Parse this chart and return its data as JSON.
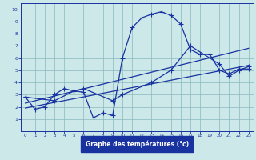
{
  "xlabel": "Graphe des températures (°c)",
  "xlim": [
    -0.5,
    23.5
  ],
  "ylim": [
    0,
    10.5
  ],
  "xticks": [
    0,
    1,
    2,
    3,
    4,
    5,
    6,
    7,
    8,
    9,
    10,
    11,
    12,
    13,
    14,
    15,
    16,
    17,
    18,
    19,
    20,
    21,
    22,
    23
  ],
  "yticks": [
    1,
    2,
    3,
    4,
    5,
    6,
    7,
    8,
    9,
    10
  ],
  "bg_color": "#cce8e8",
  "grid_color": "#88b8bc",
  "line_color": "#1832a0",
  "curve1_x": [
    0,
    1,
    2,
    3,
    4,
    5,
    6,
    7,
    8,
    9,
    10,
    11,
    12,
    13,
    14,
    15,
    16,
    17,
    18,
    19,
    20,
    21,
    22,
    23
  ],
  "curve1_y": [
    2.8,
    1.8,
    2.0,
    3.0,
    3.5,
    3.3,
    3.2,
    1.1,
    1.5,
    1.3,
    6.0,
    8.5,
    9.3,
    9.6,
    9.8,
    9.5,
    8.8,
    6.7,
    6.3,
    6.3,
    5.0,
    4.7,
    5.1,
    5.1
  ],
  "curve2_x": [
    0,
    3,
    5,
    6,
    9,
    10,
    13,
    15,
    17,
    20,
    21,
    22,
    23
  ],
  "curve2_y": [
    2.8,
    2.5,
    3.3,
    3.5,
    2.5,
    3.0,
    4.0,
    5.0,
    7.0,
    5.5,
    4.5,
    5.0,
    5.3
  ],
  "line1_x": [
    0,
    23
  ],
  "line1_y": [
    2.3,
    6.8
  ],
  "line2_x": [
    0,
    23
  ],
  "line2_y": [
    1.9,
    5.4
  ]
}
